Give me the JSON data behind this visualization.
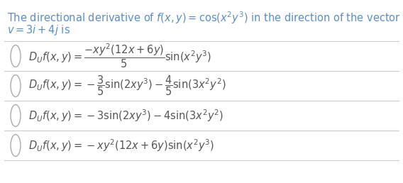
{
  "background_color": "#ffffff",
  "header_line1": "The directional derivative of $f(x, y) = \\cos(x^2y^3)$ in the direction of the vector",
  "header_line2": "$v = 3i + 4j$ is",
  "header_color": "#5b8ec4",
  "option_color": "#555555",
  "options": [
    "$D_U f(x, y) = \\dfrac{-xy^2(12x+6y)}{5}\\sin(x^2y^3)$",
    "$D_U f(x, y) = -\\dfrac{3}{5}\\sin(2xy^3) - \\dfrac{4}{5}\\sin(3x^2y^2)$",
    "$D_U f(x, y) = -3\\sin(2xy^3) - 4\\sin(3x^2y^2)$",
    "$D_U f(x, y) = -xy^2(12x + 6y)\\sin(x^2y^3)$"
  ],
  "separator_color": "#cccccc",
  "circle_color": "#aaaaaa",
  "figsize": [
    5.68,
    2.58
  ],
  "dpi": 100
}
